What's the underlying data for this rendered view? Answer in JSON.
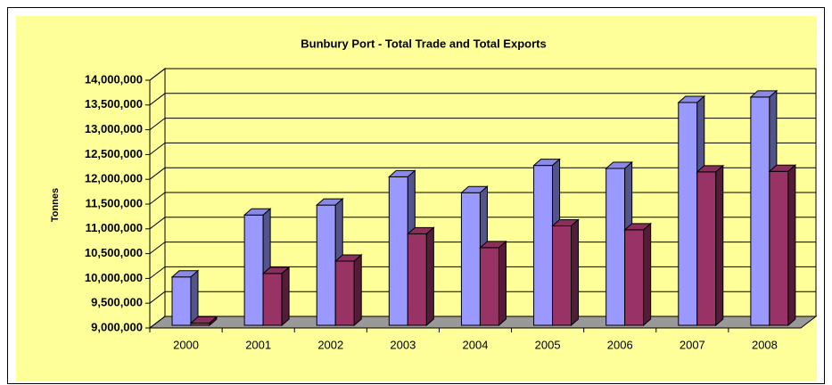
{
  "chart_data": {
    "type": "bar3d",
    "title": "Bunbury Port - Total Trade and Total Exports",
    "ylabel": "Tonnes",
    "categories": [
      "2000",
      "2001",
      "2002",
      "2003",
      "2004",
      "2005",
      "2006",
      "2007",
      "2008"
    ],
    "series": [
      {
        "color": "#9999ff",
        "values": [
          10030000,
          11280000,
          11480000,
          12050000,
          11730000,
          12280000,
          12220000,
          13550000,
          13660000
        ]
      },
      {
        "color": "#993366",
        "values": [
          9100000,
          10100000,
          10350000,
          10900000,
          10620000,
          11060000,
          10980000,
          12150000,
          12160000
        ]
      }
    ],
    "ylim": [
      9000000,
      14000000
    ],
    "yticks": [
      {
        "value": 9000000,
        "label": "9,000,000"
      },
      {
        "value": 9500000,
        "label": "9,500,000"
      },
      {
        "value": 10000000,
        "label": "10,000,000"
      },
      {
        "value": 10500000,
        "label": "10,500,000"
      },
      {
        "value": 11000000,
        "label": "11,000,000"
      },
      {
        "value": 11500000,
        "label": "11,500,000"
      },
      {
        "value": 12000000,
        "label": "12,000,000"
      },
      {
        "value": 12500000,
        "label": "12,500,000"
      },
      {
        "value": 13000000,
        "label": "13,000,000"
      },
      {
        "value": 13500000,
        "label": "13,500,000"
      },
      {
        "value": 14000000,
        "label": "14,000,000"
      }
    ],
    "grid": true
  }
}
